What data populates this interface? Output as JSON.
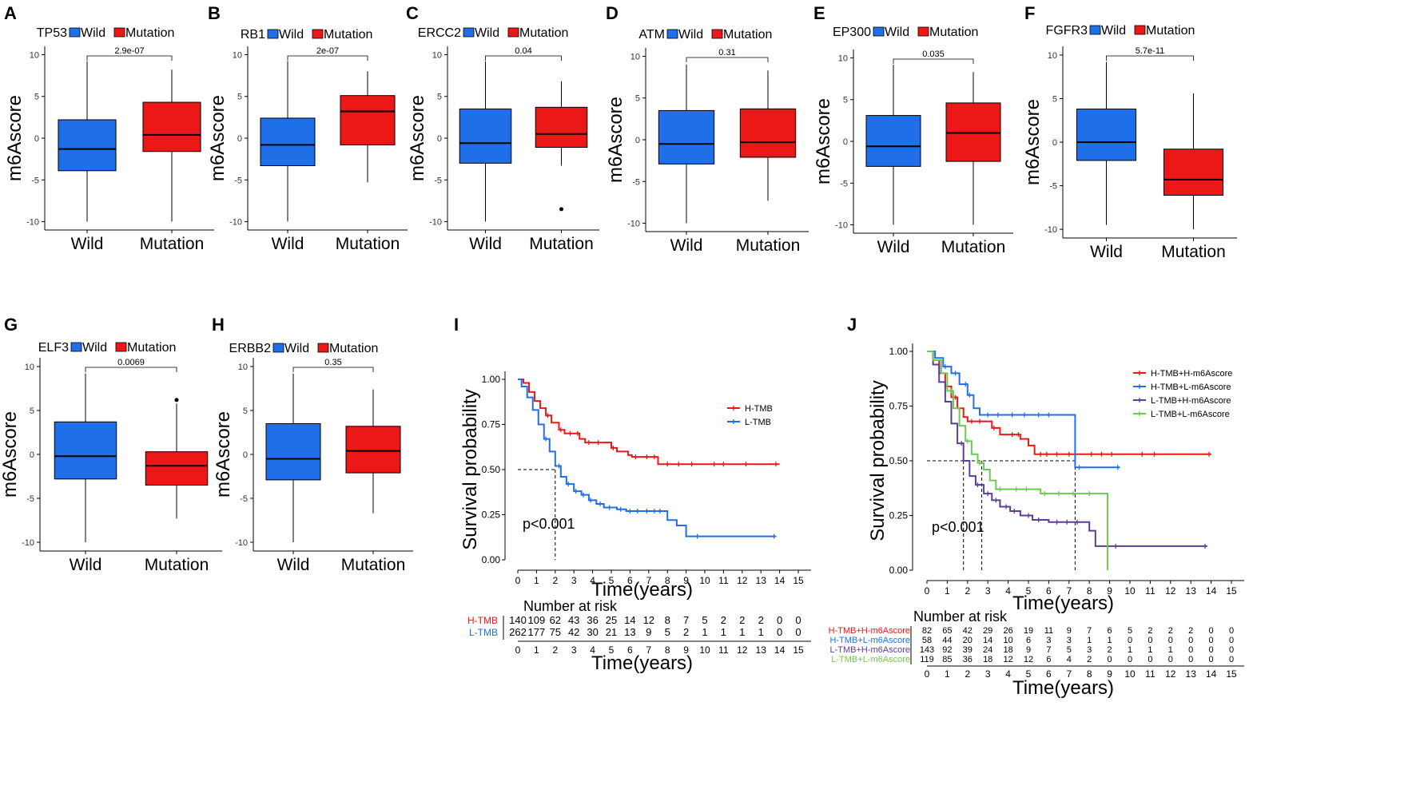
{
  "colors": {
    "wild": "#1f6fe8",
    "mutation": "#ec1717",
    "purple": "#5b3f94",
    "green": "#6dca4f"
  },
  "chart_data": [
    {
      "type": "box",
      "letter": "A",
      "title": "TP53",
      "legend": [
        "Wild",
        "Mutation"
      ],
      "ylabel": "m6Ascore",
      "categories": [
        "Wild",
        "Mutation"
      ],
      "ylim": [
        -11,
        11
      ],
      "yticks": [
        10,
        5,
        0,
        -5,
        -10
      ],
      "pvalue": "2.9e-07",
      "boxes": [
        {
          "min": -10,
          "q1": -3.9,
          "median": -1.3,
          "q3": 2.2,
          "max": 9.2,
          "outliers": []
        },
        {
          "min": -10,
          "q1": -1.6,
          "median": 0.4,
          "q3": 4.3,
          "max": 8.2,
          "outliers": []
        }
      ]
    },
    {
      "type": "box",
      "letter": "B",
      "title": "RB1",
      "legend": [
        "Wild",
        "Mutation"
      ],
      "ylabel": "m6Ascore",
      "categories": [
        "Wild",
        "Mutation"
      ],
      "ylim": [
        -11,
        11
      ],
      "yticks": [
        10,
        5,
        0,
        -5,
        -10
      ],
      "pvalue": "2e-07",
      "boxes": [
        {
          "min": -10,
          "q1": -3.3,
          "median": -0.8,
          "q3": 2.4,
          "max": 9.2,
          "outliers": []
        },
        {
          "min": -5.3,
          "q1": -0.8,
          "median": 3.2,
          "q3": 5.1,
          "max": 8.0,
          "outliers": []
        }
      ]
    },
    {
      "type": "box",
      "letter": "C",
      "title": "ERCC2",
      "legend": [
        "Wild",
        "Mutation"
      ],
      "ylabel": "m6Ascore",
      "categories": [
        "Wild",
        "Mutation"
      ],
      "ylim": [
        -11,
        11
      ],
      "yticks": [
        10,
        5,
        0,
        -5,
        -10
      ],
      "pvalue": "0.04",
      "boxes": [
        {
          "min": -10,
          "q1": -3.0,
          "median": -0.6,
          "q3": 3.5,
          "max": 9.2,
          "outliers": []
        },
        {
          "min": -3.3,
          "q1": -1.1,
          "median": 0.5,
          "q3": 3.7,
          "max": 6.8,
          "outliers": [
            -8.5
          ]
        }
      ]
    },
    {
      "type": "box",
      "letter": "D",
      "title": "ATM",
      "legend": [
        "Wild",
        "Mutation"
      ],
      "ylabel": "m6Ascore",
      "categories": [
        "Wild",
        "Mutation"
      ],
      "ylim": [
        -11,
        11
      ],
      "yticks": [
        10,
        5,
        0,
        -5,
        -10
      ],
      "pvalue": "0.31",
      "boxes": [
        {
          "min": -10,
          "q1": -2.9,
          "median": -0.5,
          "q3": 3.5,
          "max": 9.0,
          "outliers": []
        },
        {
          "min": -7.3,
          "q1": -2.1,
          "median": -0.3,
          "q3": 3.7,
          "max": 8.3,
          "outliers": []
        }
      ]
    },
    {
      "type": "box",
      "letter": "E",
      "title": "EP300",
      "legend": [
        "Wild",
        "Mutation"
      ],
      "ylabel": "m6Ascore",
      "categories": [
        "Wild",
        "Mutation"
      ],
      "ylim": [
        -11,
        11
      ],
      "yticks": [
        10,
        5,
        0,
        -5,
        -10
      ],
      "pvalue": "0.035",
      "boxes": [
        {
          "min": -10,
          "q1": -3.0,
          "median": -0.6,
          "q3": 3.1,
          "max": 9.2,
          "outliers": []
        },
        {
          "min": -10,
          "q1": -2.4,
          "median": 1.0,
          "q3": 4.6,
          "max": 8.3,
          "outliers": []
        }
      ]
    },
    {
      "type": "box",
      "letter": "F",
      "title": "FGFR3",
      "legend": [
        "Wild",
        "Mutation"
      ],
      "ylabel": "m6Ascore",
      "categories": [
        "Wild",
        "Mutation"
      ],
      "ylim": [
        -11,
        11
      ],
      "yticks": [
        10,
        5,
        0,
        -5,
        -10
      ],
      "pvalue": "5.7e-11",
      "boxes": [
        {
          "min": -9.5,
          "q1": -2.1,
          "median": 0.0,
          "q3": 3.8,
          "max": 9.2,
          "outliers": []
        },
        {
          "min": -10,
          "q1": -6.1,
          "median": -4.3,
          "q3": -0.8,
          "max": 5.6,
          "outliers": []
        }
      ]
    },
    {
      "type": "box",
      "letter": "G",
      "title": "ELF3",
      "legend": [
        "Wild",
        "Mutation"
      ],
      "ylabel": "m6Ascore",
      "categories": [
        "Wild",
        "Mutation"
      ],
      "ylim": [
        -11,
        11
      ],
      "yticks": [
        10,
        5,
        0,
        -5,
        -10
      ],
      "pvalue": "0.0069",
      "boxes": [
        {
          "min": -10,
          "q1": -2.8,
          "median": -0.2,
          "q3": 3.7,
          "max": 9.2,
          "outliers": []
        },
        {
          "min": -7.3,
          "q1": -3.5,
          "median": -1.3,
          "q3": 0.3,
          "max": 5.8,
          "outliers": [
            6.2
          ]
        }
      ]
    },
    {
      "type": "box",
      "letter": "H",
      "title": "ERBB2",
      "legend": [
        "Wild",
        "Mutation"
      ],
      "ylabel": "m6Ascore",
      "categories": [
        "Wild",
        "Mutation"
      ],
      "ylim": [
        -11,
        11
      ],
      "yticks": [
        10,
        5,
        0,
        -5,
        -10
      ],
      "pvalue": "0.35",
      "boxes": [
        {
          "min": -10,
          "q1": -2.9,
          "median": -0.5,
          "q3": 3.5,
          "max": 9.2,
          "outliers": []
        },
        {
          "min": -6.7,
          "q1": -2.1,
          "median": 0.4,
          "q3": 3.2,
          "max": 7.4,
          "outliers": []
        }
      ]
    },
    {
      "type": "line",
      "subtype": "kaplan-meier",
      "letter": "I",
      "ylabel": "Survival probability",
      "xlabel": "Time(years)",
      "xlim": [
        0,
        15
      ],
      "ylim": [
        0,
        1
      ],
      "xticks": [
        0,
        1,
        2,
        3,
        4,
        5,
        6,
        7,
        8,
        9,
        10,
        11,
        12,
        13,
        14,
        15
      ],
      "yticks": [
        "0.00",
        "0.25",
        "0.50",
        "0.75",
        "1.00"
      ],
      "pvalue": "p<0.001",
      "median_lines": [
        {
          "x": 2.0,
          "y": 0.5
        }
      ],
      "series": [
        {
          "name": "H-TMB",
          "color": "#ec1717",
          "points": [
            [
              0,
              1
            ],
            [
              0.3,
              0.98
            ],
            [
              0.6,
              0.93
            ],
            [
              0.9,
              0.88
            ],
            [
              1.2,
              0.84
            ],
            [
              1.5,
              0.8
            ],
            [
              1.8,
              0.76
            ],
            [
              2.2,
              0.72
            ],
            [
              2.5,
              0.7
            ],
            [
              3.0,
              0.7
            ],
            [
              3.3,
              0.67
            ],
            [
              3.6,
              0.65
            ],
            [
              4.5,
              0.65
            ],
            [
              5.0,
              0.62
            ],
            [
              5.3,
              0.6
            ],
            [
              5.6,
              0.6
            ],
            [
              5.9,
              0.58
            ],
            [
              6.1,
              0.57
            ],
            [
              7.3,
              0.57
            ],
            [
              7.5,
              0.53
            ],
            [
              14.0,
              0.53
            ]
          ],
          "censors": [
            1.6,
            2.3,
            2.8,
            3.2,
            3.8,
            4.3,
            5.1,
            6.3,
            6.9,
            7.3,
            8.0,
            8.6,
            9.3,
            10.5,
            11.0,
            12.2,
            13.8
          ]
        },
        {
          "name": "L-TMB",
          "color": "#1f6fe8",
          "points": [
            [
              0,
              1
            ],
            [
              0.2,
              0.96
            ],
            [
              0.5,
              0.9
            ],
            [
              0.8,
              0.83
            ],
            [
              1.1,
              0.75
            ],
            [
              1.4,
              0.67
            ],
            [
              1.7,
              0.6
            ],
            [
              2.0,
              0.52
            ],
            [
              2.3,
              0.46
            ],
            [
              2.6,
              0.42
            ],
            [
              3.0,
              0.38
            ],
            [
              3.4,
              0.36
            ],
            [
              3.8,
              0.33
            ],
            [
              4.2,
              0.31
            ],
            [
              4.6,
              0.29
            ],
            [
              5.0,
              0.29
            ],
            [
              5.3,
              0.28
            ],
            [
              5.8,
              0.27
            ],
            [
              7.7,
              0.27
            ],
            [
              8.0,
              0.22
            ],
            [
              8.5,
              0.19
            ],
            [
              9.0,
              0.13
            ],
            [
              13.8,
              0.13
            ]
          ],
          "censors": [
            1.5,
            2.2,
            2.7,
            3.1,
            3.5,
            3.9,
            4.4,
            4.9,
            5.5,
            6.0,
            6.4,
            6.9,
            7.3,
            7.6,
            9.6,
            13.7
          ]
        }
      ],
      "risk_table": {
        "title": "Number at risk",
        "xlabel": "Time(years)",
        "rows": [
          {
            "label": "H-TMB",
            "values": [
              "140",
              "109",
              "62",
              "43",
              "36",
              "25",
              "14",
              "12",
              "8",
              "7",
              "5",
              "2",
              "2",
              "2",
              "0",
              "0"
            ]
          },
          {
            "label": "L-TMB",
            "values": [
              "262",
              "177",
              "75",
              "42",
              "30",
              "21",
              "13",
              "9",
              "5",
              "2",
              "1",
              "1",
              "1",
              "1",
              "0",
              "0"
            ]
          }
        ]
      }
    },
    {
      "type": "line",
      "subtype": "kaplan-meier",
      "letter": "J",
      "ylabel": "Survival probability",
      "xlabel": "Time(years)",
      "xlim": [
        0,
        15
      ],
      "ylim": [
        0,
        1
      ],
      "xticks": [
        0,
        1,
        2,
        3,
        4,
        5,
        6,
        7,
        8,
        9,
        10,
        11,
        12,
        13,
        14,
        15
      ],
      "yticks": [
        "0.00",
        "0.25",
        "0.50",
        "0.75",
        "1.00"
      ],
      "pvalue": "p<0.001",
      "median_lines": [
        {
          "x": 1.8,
          "y": 0.5
        },
        {
          "x": 2.7,
          "y": 0.5
        },
        {
          "x": 7.3,
          "y": 0.5
        }
      ],
      "series": [
        {
          "name": "H-TMB+H-m6Ascore",
          "color": "#ec1717",
          "points": [
            [
              0,
              1
            ],
            [
              0.3,
              0.96
            ],
            [
              0.6,
              0.9
            ],
            [
              0.9,
              0.84
            ],
            [
              1.2,
              0.79
            ],
            [
              1.5,
              0.74
            ],
            [
              1.8,
              0.7
            ],
            [
              2.0,
              0.68
            ],
            [
              3.0,
              0.68
            ],
            [
              3.2,
              0.65
            ],
            [
              3.6,
              0.62
            ],
            [
              4.0,
              0.62
            ],
            [
              4.6,
              0.6
            ],
            [
              5.0,
              0.57
            ],
            [
              5.3,
              0.53
            ],
            [
              14.0,
              0.53
            ]
          ],
          "censors": [
            1.4,
            2.2,
            2.6,
            3.3,
            4.2,
            4.5,
            5.6,
            5.9,
            6.4,
            7.0,
            8.1,
            8.6,
            9.1,
            10.6,
            11.2,
            13.9
          ]
        },
        {
          "name": "H-TMB+L-m6Ascore",
          "color": "#1f6fe8",
          "points": [
            [
              0,
              1
            ],
            [
              0.4,
              0.97
            ],
            [
              0.8,
              0.93
            ],
            [
              1.2,
              0.9
            ],
            [
              1.6,
              0.85
            ],
            [
              2.0,
              0.8
            ],
            [
              2.3,
              0.74
            ],
            [
              2.6,
              0.71
            ],
            [
              7.3,
              0.71
            ],
            [
              7.3,
              0.47
            ],
            [
              9.5,
              0.47
            ]
          ],
          "censors": [
            0.9,
            1.4,
            1.9,
            2.1,
            3.0,
            3.5,
            4.2,
            4.8,
            5.5,
            6.0,
            7.5,
            9.4
          ]
        },
        {
          "name": "L-TMB+H-m6Ascore",
          "color": "#5b3f94",
          "points": [
            [
              0,
              1
            ],
            [
              0.3,
              0.94
            ],
            [
              0.6,
              0.86
            ],
            [
              0.9,
              0.77
            ],
            [
              1.2,
              0.67
            ],
            [
              1.5,
              0.58
            ],
            [
              1.8,
              0.5
            ],
            [
              2.1,
              0.43
            ],
            [
              2.4,
              0.39
            ],
            [
              2.8,
              0.35
            ],
            [
              3.2,
              0.32
            ],
            [
              3.6,
              0.29
            ],
            [
              4.1,
              0.27
            ],
            [
              4.6,
              0.25
            ],
            [
              5.2,
              0.23
            ],
            [
              6.0,
              0.22
            ],
            [
              7.7,
              0.22
            ],
            [
              8.0,
              0.18
            ],
            [
              8.3,
              0.11
            ],
            [
              13.8,
              0.11
            ]
          ],
          "censors": [
            1.7,
            2.5,
            3.0,
            3.4,
            3.9,
            4.3,
            5.0,
            5.5,
            6.4,
            6.9,
            7.4,
            9.3,
            13.7
          ]
        },
        {
          "name": "L-TMB+L-m6Ascore",
          "color": "#6dca4f",
          "points": [
            [
              0,
              1
            ],
            [
              0.3,
              0.96
            ],
            [
              0.7,
              0.9
            ],
            [
              1.0,
              0.82
            ],
            [
              1.3,
              0.74
            ],
            [
              1.6,
              0.66
            ],
            [
              1.9,
              0.59
            ],
            [
              2.2,
              0.53
            ],
            [
              2.5,
              0.49
            ],
            [
              2.8,
              0.46
            ],
            [
              3.1,
              0.41
            ],
            [
              3.4,
              0.37
            ],
            [
              5.3,
              0.37
            ],
            [
              5.6,
              0.35
            ],
            [
              8.7,
              0.35
            ],
            [
              8.9,
              0.0
            ]
          ],
          "censors": [
            1.2,
            2.0,
            2.6,
            3.6,
            4.4,
            4.9,
            5.8,
            6.5,
            7.2,
            8.0
          ]
        }
      ],
      "risk_table": {
        "title": "Number at risk",
        "xlabel": "Time(years)",
        "rows": [
          {
            "label": "H-TMB+H-m6Ascore",
            "values": [
              "82",
              "65",
              "42",
              "29",
              "26",
              "19",
              "11",
              "9",
              "7",
              "6",
              "5",
              "2",
              "2",
              "2",
              "0",
              "0"
            ]
          },
          {
            "label": "H-TMB+L-m6Ascore",
            "values": [
              "58",
              "44",
              "20",
              "14",
              "10",
              "6",
              "3",
              "3",
              "1",
              "1",
              "0",
              "0",
              "0",
              "0",
              "0",
              "0"
            ]
          },
          {
            "label": "L-TMB+H-m6Ascore",
            "values": [
              "143",
              "92",
              "39",
              "24",
              "18",
              "9",
              "7",
              "5",
              "3",
              "2",
              "1",
              "1",
              "1",
              "0",
              "0",
              "0"
            ]
          },
          {
            "label": "L-TMB+L-m6Ascore",
            "values": [
              "119",
              "85",
              "36",
              "18",
              "12",
              "12",
              "6",
              "4",
              "2",
              "0",
              "0",
              "0",
              "0",
              "0",
              "0",
              "0"
            ]
          }
        ]
      }
    }
  ]
}
